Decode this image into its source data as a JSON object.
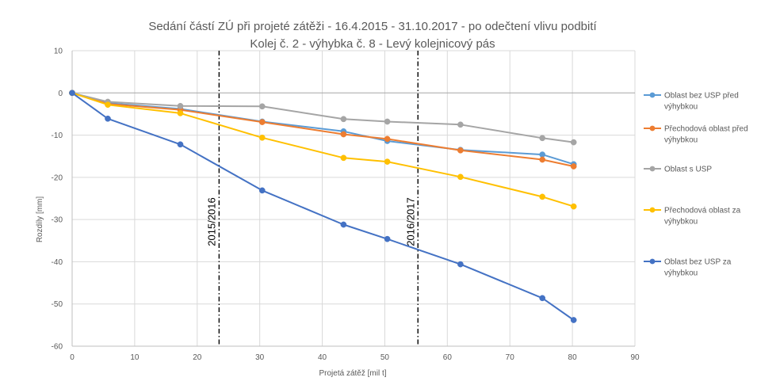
{
  "chart_data": {
    "type": "line",
    "title": "Sedání částí ZÚ při projeté zátěži - 16.4.2015 - 31.10.2017 - po odečtení vlivu podbití",
    "subtitle": "Kolej č. 2 - výhybka č. 8 - Levý kolejnicový pás",
    "xlabel": "Projetá zátěž [mil t]",
    "ylabel": "Rozdíly [mm]",
    "xlim": [
      0,
      90
    ],
    "ylim": [
      -60,
      10
    ],
    "x_ticks": [
      0,
      10,
      20,
      30,
      40,
      50,
      60,
      70,
      80,
      90
    ],
    "y_ticks": [
      10,
      0,
      -10,
      -20,
      -30,
      -40,
      -50,
      -60
    ],
    "grid": true,
    "legend_position": "right",
    "period_lines": [
      {
        "x": 23.5,
        "label": "2015/2016"
      },
      {
        "x": 55.3,
        "label": "2016/2017"
      }
    ],
    "series": [
      {
        "name": "Oblast bez USP před výhybkou",
        "color": "#5B9BD5",
        "points": [
          [
            0,
            0
          ],
          [
            5.7,
            -2.4
          ],
          [
            17.3,
            -3.8
          ],
          [
            30.4,
            -6.8
          ],
          [
            43.4,
            -9.1
          ],
          [
            50.4,
            -11.4
          ],
          [
            62.1,
            -13.5
          ],
          [
            75.2,
            -14.6
          ],
          [
            80.2,
            -16.9
          ]
        ]
      },
      {
        "name": "Přechodová oblast před výhybkou",
        "color": "#ED7D31",
        "points": [
          [
            0,
            0
          ],
          [
            5.7,
            -2.6
          ],
          [
            17.3,
            -4.0
          ],
          [
            30.4,
            -6.9
          ],
          [
            43.4,
            -9.8
          ],
          [
            50.4,
            -10.9
          ],
          [
            62.1,
            -13.6
          ],
          [
            75.2,
            -15.8
          ],
          [
            80.2,
            -17.4
          ]
        ]
      },
      {
        "name": "Oblast s USP",
        "color": "#A5A5A5",
        "points": [
          [
            0,
            0
          ],
          [
            5.7,
            -2.1
          ],
          [
            17.3,
            -3.1
          ],
          [
            30.4,
            -3.2
          ],
          [
            43.4,
            -6.2
          ],
          [
            50.4,
            -6.8
          ],
          [
            62.1,
            -7.5
          ],
          [
            75.2,
            -10.7
          ],
          [
            80.2,
            -11.7
          ]
        ]
      },
      {
        "name": "Přechodová oblast za výhybkou",
        "color": "#FFC000",
        "points": [
          [
            0,
            0
          ],
          [
            5.7,
            -2.8
          ],
          [
            17.3,
            -4.8
          ],
          [
            30.4,
            -10.6
          ],
          [
            43.4,
            -15.4
          ],
          [
            50.4,
            -16.3
          ],
          [
            62.1,
            -19.9
          ],
          [
            75.2,
            -24.6
          ],
          [
            80.2,
            -26.9
          ]
        ]
      },
      {
        "name": "Oblast bez USP za výhybkou",
        "color": "#4472C4",
        "points": [
          [
            0,
            0
          ],
          [
            5.7,
            -6.1
          ],
          [
            17.3,
            -12.2
          ],
          [
            30.4,
            -23.1
          ],
          [
            43.4,
            -31.2
          ],
          [
            50.4,
            -34.6
          ],
          [
            62.1,
            -40.6
          ],
          [
            75.2,
            -48.6
          ],
          [
            80.2,
            -53.8
          ]
        ]
      }
    ]
  }
}
